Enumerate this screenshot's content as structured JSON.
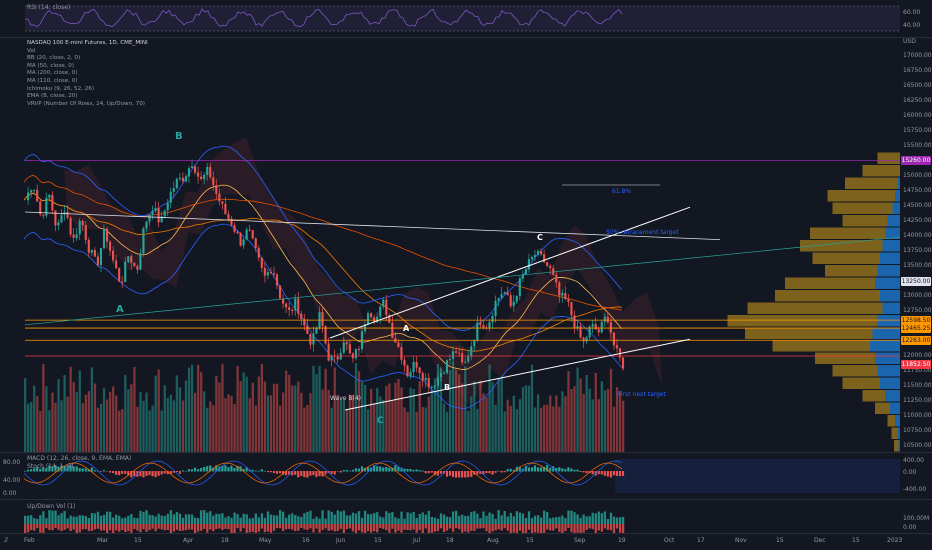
{
  "rsi": {
    "label": "RSI (14, close)",
    "ticks": [
      "60.00",
      "40.00"
    ]
  },
  "main": {
    "symbol": "NASDAQ 100 E-mini Futures, 1D, CME_MINI",
    "indicators": [
      "Vol",
      "BB (20, close, 2, 0)",
      "MA (50, close, 0)",
      "MA (200, close, 0)",
      "MA (110, close, 0)",
      "Ichimoku (9, 26, 52, 26)",
      "EMA (8, close, 20)",
      "VRVP (Number Of Rows, 24, Up/Down, 70)"
    ],
    "currency": "USD",
    "price_ticks": [
      "17000.00",
      "16750.00",
      "16500.00",
      "16250.00",
      "16000.00",
      "15750.00",
      "15500.00",
      "15250.00",
      "15000.00",
      "14750.00",
      "14500.00",
      "14250.00",
      "14000.00",
      "13750.00",
      "13500.00",
      "13250.00",
      "13000.00",
      "12750.00",
      "12500.00",
      "12250.00",
      "12000.00",
      "11750.00",
      "11500.00",
      "11250.00",
      "11000.00",
      "10750.00",
      "10500.00"
    ],
    "price_tags": [
      {
        "text": "15260.00",
        "color": "#9c27b0"
      },
      {
        "text": "13250.00",
        "color": "#e0e3eb"
      },
      {
        "text": "12598.50",
        "color": "#ff9800"
      },
      {
        "text": "12465.25",
        "color": "#ff9800"
      },
      {
        "text": "12263.00",
        "color": "#ff9800"
      },
      {
        "text": "11852.50",
        "color": "#f23645"
      }
    ],
    "annotations": {
      "fib": "61.8%",
      "retracement": "50% retracement target",
      "first_next": "First next target",
      "wave_b_low": "Wave B(4)"
    },
    "waves": [
      "B",
      "A",
      "A",
      "B",
      "C",
      "C"
    ]
  },
  "macd": {
    "label": "MACD (12, 26, close, 9, EMA, EMA)",
    "stoch": "Stoch (14, 1, 3)",
    "left_ticks": [
      "80.00",
      "40.00",
      "0.00"
    ],
    "right_ticks": [
      "400.00",
      "0.00",
      "-400.00"
    ]
  },
  "updown": {
    "label": "Up/Down Vol (1)",
    "ticks": [
      "100.00M",
      "0.00"
    ]
  },
  "time_axis": [
    "Feb",
    "Mar",
    "15",
    "Apr",
    "18",
    "May",
    "16",
    "Jun",
    "15",
    "Jul",
    "18",
    "Aug",
    "15",
    "Sep",
    "19",
    "Oct",
    "17",
    "Nov",
    "15",
    "Dec",
    "15",
    "2023"
  ],
  "colors": {
    "bull": "#26a69a",
    "bear": "#ef5350",
    "bg": "#131722"
  },
  "chart_data": {
    "type": "candlestick",
    "title": "NASDAQ 100 E-mini Futures, 1D, CME_MINI",
    "ylim": [
      10400,
      17300
    ],
    "levels": [
      15260,
      13250,
      12598.5,
      12465.25,
      12263,
      11852.5
    ],
    "path": [
      14600,
      14900,
      14300,
      14700,
      14100,
      14500,
      13900,
      14300,
      13800,
      13500,
      14100,
      13600,
      13200,
      13700,
      13400,
      14200,
      14500,
      14200,
      14650,
      14900,
      15000,
      15250,
      14900,
      15100,
      14700,
      14400,
      14200,
      13900,
      14100,
      13700,
      13300,
      13500,
      13000,
      12700,
      12900,
      12500,
      12200,
      12700,
      12000,
      11900,
      12300,
      11900,
      12200,
      12800,
      12600,
      12900,
      12400,
      12100,
      11700,
      11900,
      11650,
      11500,
      11700,
      11900,
      12100,
      11800,
      12200,
      12600,
      12500,
      12900,
      13100,
      12800,
      13200,
      13500,
      13700,
      13600,
      13400,
      13000,
      12900,
      12500,
      12200,
      12500,
      12400,
      12700,
      12100,
      11850
    ],
    "profile_up": [
      0.15,
      0.25,
      0.35,
      0.45,
      0.4,
      0.3,
      0.5,
      0.55,
      0.45,
      0.35,
      0.6,
      0.7,
      0.9,
      1.0,
      0.85,
      0.65,
      0.4,
      0.3,
      0.25,
      0.15,
      0.1,
      0.05,
      0.04,
      0.03
    ],
    "profile_down": [
      0.0,
      0.0,
      0.05,
      0.1,
      0.15,
      0.25,
      0.3,
      0.35,
      0.4,
      0.45,
      0.5,
      0.4,
      0.35,
      0.45,
      0.55,
      0.6,
      0.5,
      0.45,
      0.4,
      0.3,
      0.2,
      0.1,
      0.05,
      0.03
    ]
  }
}
